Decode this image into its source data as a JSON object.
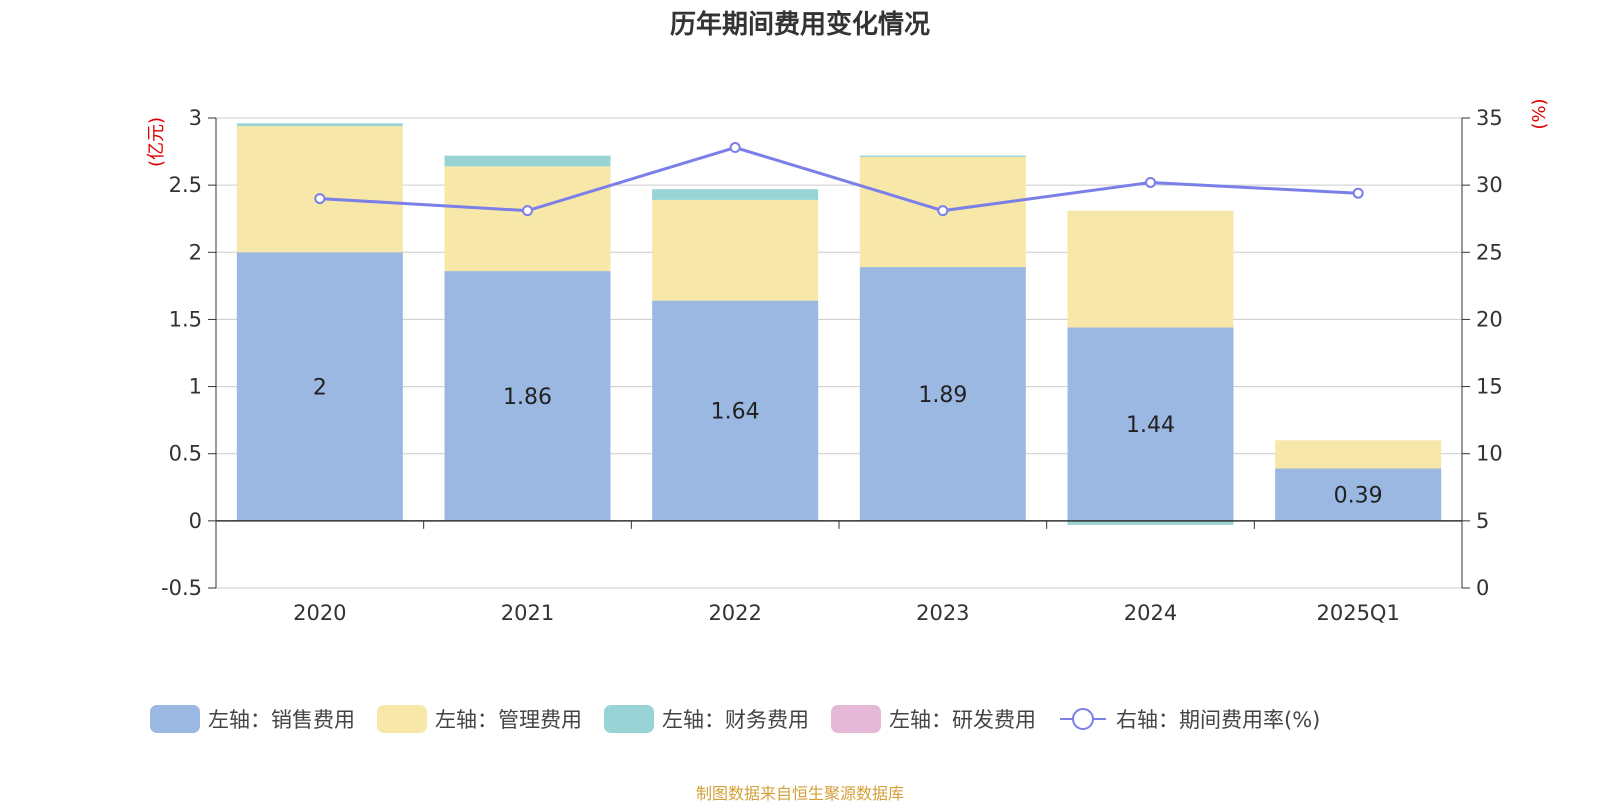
{
  "chart_data": {
    "type": "bar",
    "title": "历年期间费用变化情况",
    "categories": [
      "2020",
      "2021",
      "2022",
      "2023",
      "2024",
      "2025Q1"
    ],
    "left_axis": {
      "unit": "(亿元)",
      "ylim": [
        -0.5,
        3
      ],
      "ticks": [
        "3",
        "2.5",
        "2",
        "1.5",
        "1",
        "0.5",
        "0",
        "-0.5"
      ]
    },
    "right_axis": {
      "unit": "(%)",
      "ylim": [
        0,
        35
      ],
      "ticks": [
        "35",
        "30",
        "25",
        "20",
        "15",
        "10",
        "5",
        "0"
      ]
    },
    "series": [
      {
        "name": "左轴：销售费用",
        "kind": "bar",
        "color": "#9bb8e2",
        "values": [
          2.0,
          1.86,
          1.64,
          1.89,
          1.44,
          0.39
        ]
      },
      {
        "name": "左轴：管理费用",
        "kind": "bar",
        "color": "#f7e7a9",
        "values": [
          0.94,
          0.78,
          0.75,
          0.82,
          0.87,
          0.21
        ]
      },
      {
        "name": "左轴：财务费用",
        "kind": "bar",
        "color": "#98d4d6",
        "values": [
          0.02,
          0.08,
          0.08,
          0.01,
          -0.03,
          0.0
        ]
      },
      {
        "name": "左轴：研发费用",
        "kind": "bar",
        "color": "#e6b8d8",
        "values": [
          0,
          0,
          0,
          0,
          0,
          0
        ]
      },
      {
        "name": "右轴：期间费用率(%)",
        "kind": "line",
        "color": "#7b7fe8",
        "values": [
          29.0,
          28.1,
          32.8,
          28.1,
          30.2,
          29.4
        ]
      }
    ],
    "data_labels": [
      "2",
      "1.86",
      "1.64",
      "1.89",
      "1.44",
      "0.39"
    ],
    "grid": true,
    "legend_position": "bottom"
  },
  "source_note": "制图数据来自恒生聚源数据库"
}
